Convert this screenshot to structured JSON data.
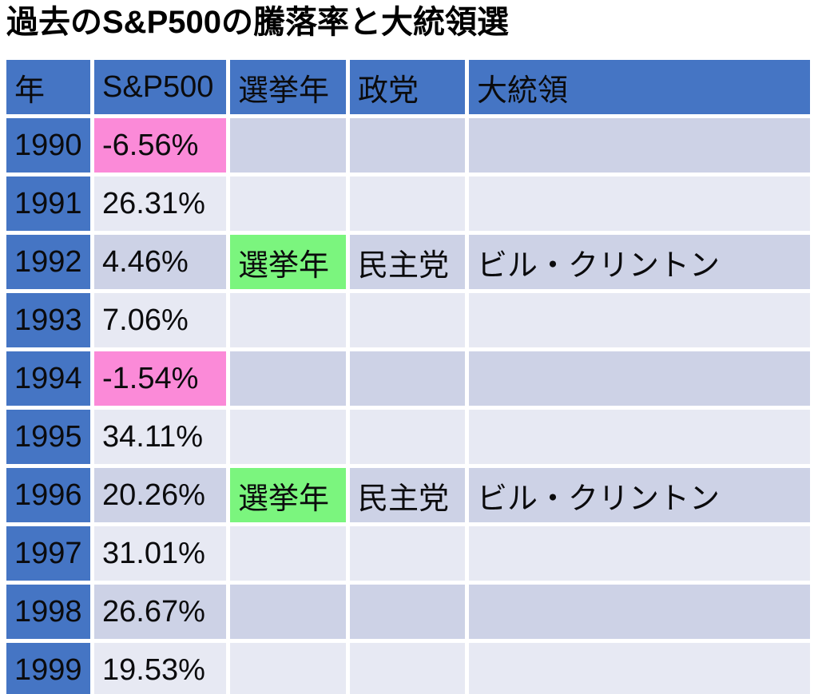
{
  "title": "過去のS&P500の騰落率と大統領選",
  "colors": {
    "blue": "#4575c4",
    "pink": "#fb8ad8",
    "green": "#7bf57e",
    "row-dark": "#cdd2e6",
    "row-light": "#e7e9f3",
    "text": "#0b0b0d",
    "bg": "#ffffff"
  },
  "table": {
    "headers": [
      "年",
      "S&P500",
      "選挙年",
      "政党",
      "大統領"
    ],
    "rows": [
      {
        "year": "1990",
        "sp500": "-6.56%",
        "election": "",
        "party": "",
        "president": ""
      },
      {
        "year": "1991",
        "sp500": "26.31%",
        "election": "",
        "party": "",
        "president": ""
      },
      {
        "year": "1992",
        "sp500": "4.46%",
        "election": "選挙年",
        "party": "民主党",
        "president": "ビル・クリントン"
      },
      {
        "year": "1993",
        "sp500": "7.06%",
        "election": "",
        "party": "",
        "president": ""
      },
      {
        "year": "1994",
        "sp500": "-1.54%",
        "election": "",
        "party": "",
        "president": ""
      },
      {
        "year": "1995",
        "sp500": "34.11%",
        "election": "",
        "party": "",
        "president": ""
      },
      {
        "year": "1996",
        "sp500": "20.26%",
        "election": "選挙年",
        "party": "民主党",
        "president": "ビル・クリントン"
      },
      {
        "year": "1997",
        "sp500": "31.01%",
        "election": "",
        "party": "",
        "president": ""
      },
      {
        "year": "1998",
        "sp500": "26.67%",
        "election": "",
        "party": "",
        "president": ""
      },
      {
        "year": "1999",
        "sp500": "19.53%",
        "election": "",
        "party": "",
        "president": ""
      }
    ]
  },
  "chart_data": {
    "type": "table",
    "title": "過去のS&P500の騰落率と大統領選",
    "columns": [
      "年",
      "S&P500",
      "選挙年",
      "政党",
      "大統領"
    ],
    "rows": [
      [
        "1990",
        "-6.56%",
        "",
        "",
        ""
      ],
      [
        "1991",
        "26.31%",
        "",
        "",
        ""
      ],
      [
        "1992",
        "4.46%",
        "選挙年",
        "民主党",
        "ビル・クリントン"
      ],
      [
        "1993",
        "7.06%",
        "",
        "",
        ""
      ],
      [
        "1994",
        "-1.54%",
        "",
        "",
        ""
      ],
      [
        "1995",
        "34.11%",
        "",
        "",
        ""
      ],
      [
        "1996",
        "20.26%",
        "選挙年",
        "民主党",
        "ビル・クリントン"
      ],
      [
        "1997",
        "31.01%",
        "",
        "",
        ""
      ],
      [
        "1998",
        "26.67%",
        "",
        "",
        ""
      ],
      [
        "1999",
        "19.53%",
        "",
        "",
        ""
      ]
    ],
    "sp500_returns_pct": {
      "1990": -6.56,
      "1991": 26.31,
      "1992": 4.46,
      "1993": 7.06,
      "1994": -1.54,
      "1995": 34.11,
      "1996": 20.26,
      "1997": 31.01,
      "1998": 26.67,
      "1999": 19.53
    },
    "negative_return_years_highlighted_pink": [
      1990,
      1994
    ],
    "election_years_highlighted_green": [
      1992,
      1996
    ],
    "banded_rows": true,
    "header_fill": "#4575c4",
    "year_column_fill": "#4575c4"
  }
}
